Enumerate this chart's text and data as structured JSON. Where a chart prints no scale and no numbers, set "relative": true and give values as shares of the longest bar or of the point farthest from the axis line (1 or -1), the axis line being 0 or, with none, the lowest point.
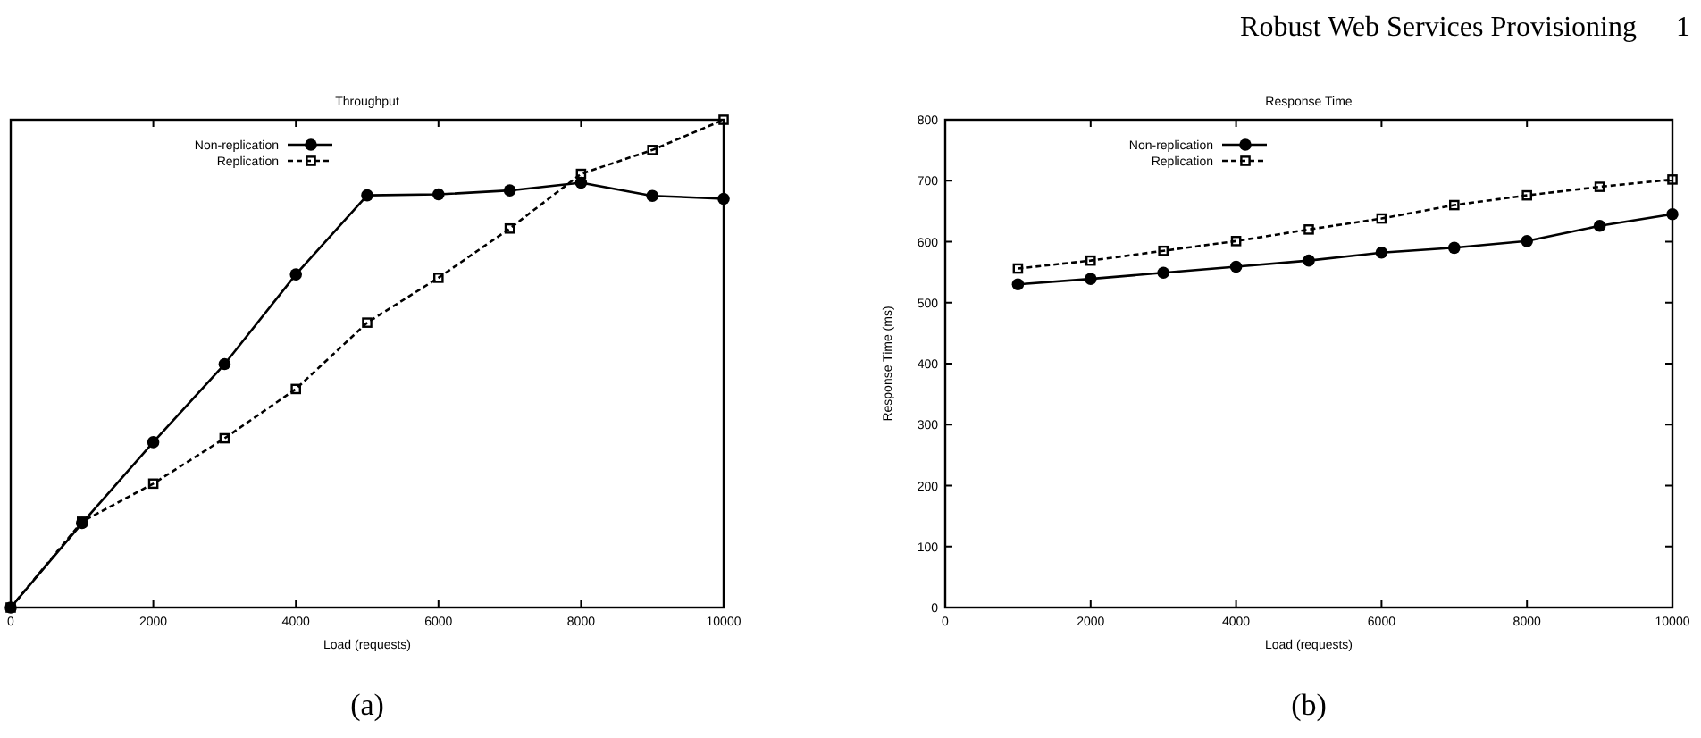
{
  "chart_data": [
    {
      "type": "line",
      "title": "Throughput",
      "xlabel": "Load (requests)",
      "relative": true,
      "x": [
        0,
        1000,
        2000,
        3000,
        4000,
        5000,
        6000,
        7000,
        8000,
        9000,
        10000
      ],
      "xlim": [
        0,
        10000
      ],
      "xticks": [
        0,
        2000,
        4000,
        6000,
        8000,
        10000
      ],
      "legend": "top left",
      "grid": false,
      "annotations": [
        "(a)"
      ],
      "series": [
        {
          "name": "Non-replication",
          "color": "#000000",
          "marker": "circle",
          "line_style": "solid",
          "values": [
            0,
            0.173,
            0.339,
            0.499,
            0.683,
            0.845,
            0.847,
            0.855,
            0.871,
            0.844,
            0.838
          ]
        },
        {
          "name": "Replication",
          "color": "#000000",
          "marker": "square",
          "line_style": "dashed",
          "values": [
            0,
            0.176,
            0.254,
            0.347,
            0.448,
            0.584,
            0.676,
            0.777,
            0.889,
            0.938,
            1
          ]
        }
      ]
    },
    {
      "type": "line",
      "title": "Response Time",
      "xlabel": "Load (requests)",
      "ylabel": "Response Time (ms)",
      "x": [
        1000,
        2000,
        3000,
        4000,
        5000,
        6000,
        7000,
        8000,
        9000,
        10000
      ],
      "xlim": [
        0,
        10000
      ],
      "xticks": [
        0,
        2000,
        4000,
        6000,
        8000,
        10000
      ],
      "ylim": [
        0,
        800
      ],
      "yticks": [
        0,
        100,
        200,
        300,
        400,
        500,
        600,
        700,
        800
      ],
      "legend": "top left",
      "grid": false,
      "annotations": [
        "(b)",
        "Robust Web Services Provisioning",
        "1"
      ],
      "series": [
        {
          "name": "Non-replication",
          "color": "#000000",
          "marker": "circle",
          "line_style": "solid",
          "values": [
            530,
            539,
            549,
            559,
            569,
            582,
            590,
            601,
            626,
            645
          ]
        },
        {
          "name": "Replication",
          "color": "#000000",
          "marker": "square",
          "line_style": "dashed",
          "values": [
            556,
            569,
            585,
            601,
            620,
            638,
            660,
            676,
            690,
            702
          ]
        }
      ]
    }
  ]
}
